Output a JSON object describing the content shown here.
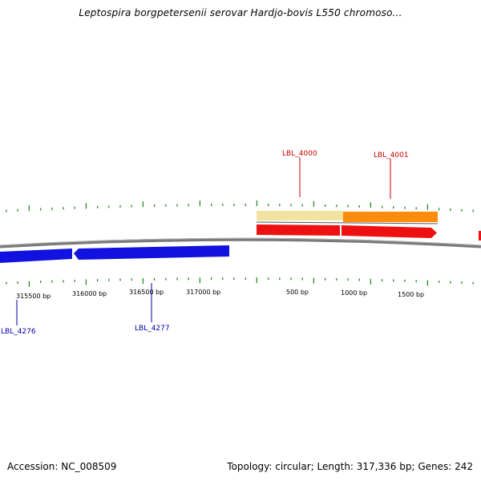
{
  "title": "Leptospira borgpetersenii serovar Hardjo-bovis L550 chromoso...",
  "footer": {
    "accession": "Accession: NC_008509",
    "stats": "Topology: circular; Length: 317,336 bp; Genes: 242"
  },
  "colors": {
    "backbone": "#7a7a7a",
    "tick": "#2a8a2a",
    "reverse_strand_gene": "#1212e0",
    "forward_strand_gene": "#ee1111",
    "feature_pale_yellow": "#f2e3a0",
    "feature_orange": "#ff8c0a",
    "label_red": "#cc0000",
    "label_blue": "#0000aa"
  },
  "scale_labels": {
    "outer": [
      "315500 bp",
      "316000 bp",
      "316500 bp",
      "317000 bp",
      "500 bp",
      "1000 bp",
      "1500 bp"
    ]
  },
  "genes": {
    "reverse_strand": [
      {
        "name": "LBL_4276",
        "color": "blue"
      },
      {
        "name": "LBL_4277",
        "color": "blue"
      }
    ],
    "forward_strand": [
      {
        "name": "LBL_4000",
        "color": "red"
      },
      {
        "name": "LBL_4001",
        "color": "red"
      }
    ]
  }
}
